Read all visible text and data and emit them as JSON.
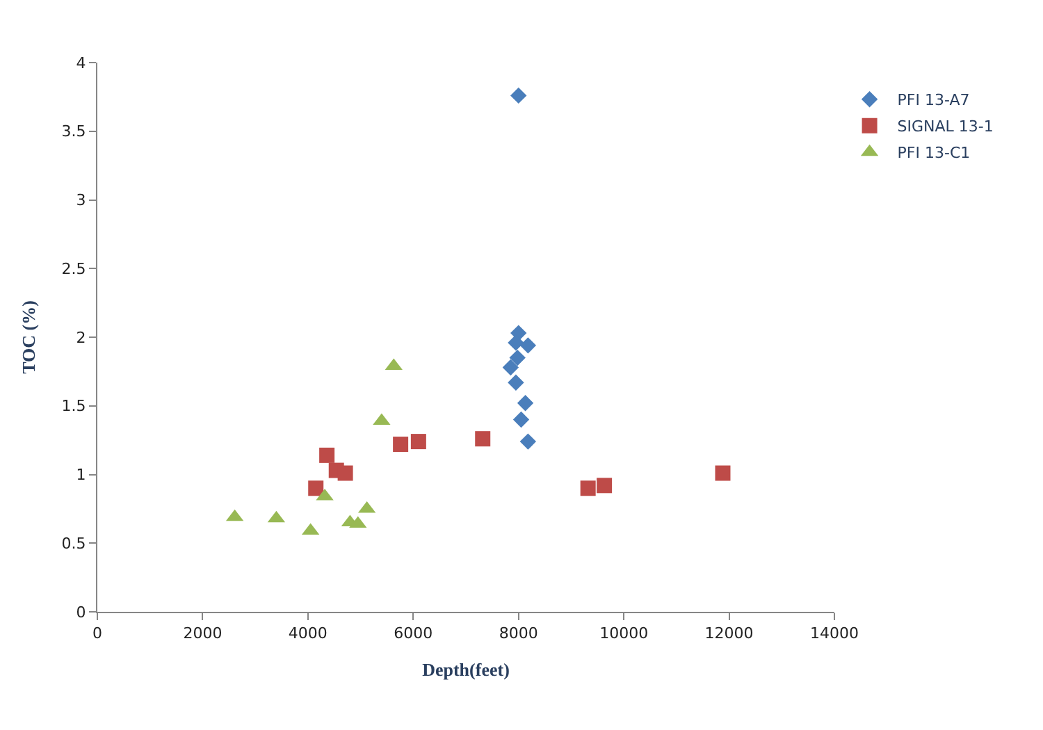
{
  "chart_data": {
    "type": "scatter",
    "xlabel": "Depth(feet)",
    "ylabel": "TOC (%)",
    "xlim": [
      0,
      14000
    ],
    "xticks": [
      0,
      2000,
      4000,
      6000,
      8000,
      10000,
      12000,
      14000
    ],
    "ylim": [
      0,
      4
    ],
    "yticks": [
      0,
      0.5,
      1,
      1.5,
      2,
      2.5,
      3,
      3.5,
      4
    ],
    "legend": "top right",
    "series": [
      {
        "name": "PFI 13-A7",
        "color": "#4a7ebb",
        "marker": "diamond",
        "x": [
          8000,
          8000,
          7950,
          8180,
          7980,
          7850,
          7950,
          8130,
          8050,
          8180
        ],
        "values": [
          3.76,
          2.03,
          1.96,
          1.94,
          1.85,
          1.78,
          1.67,
          1.52,
          1.4,
          1.24
        ]
      },
      {
        "name": "SIGNAL 13-1",
        "color": "#be4b48",
        "marker": "square",
        "x": [
          4150,
          4360,
          4540,
          4710,
          5760,
          6100,
          7320,
          9320,
          9630,
          11880
        ],
        "values": [
          0.9,
          1.14,
          1.03,
          1.01,
          1.22,
          1.24,
          1.26,
          0.9,
          0.92,
          1.01
        ]
      },
      {
        "name": "PFI 13-C1",
        "color": "#98b954",
        "marker": "triangle",
        "x": [
          2610,
          3400,
          4050,
          4320,
          4800,
          4950,
          5120,
          5400,
          5630
        ],
        "values": [
          0.69,
          0.68,
          0.59,
          0.84,
          0.65,
          0.64,
          0.75,
          1.39,
          1.79
        ]
      }
    ]
  }
}
